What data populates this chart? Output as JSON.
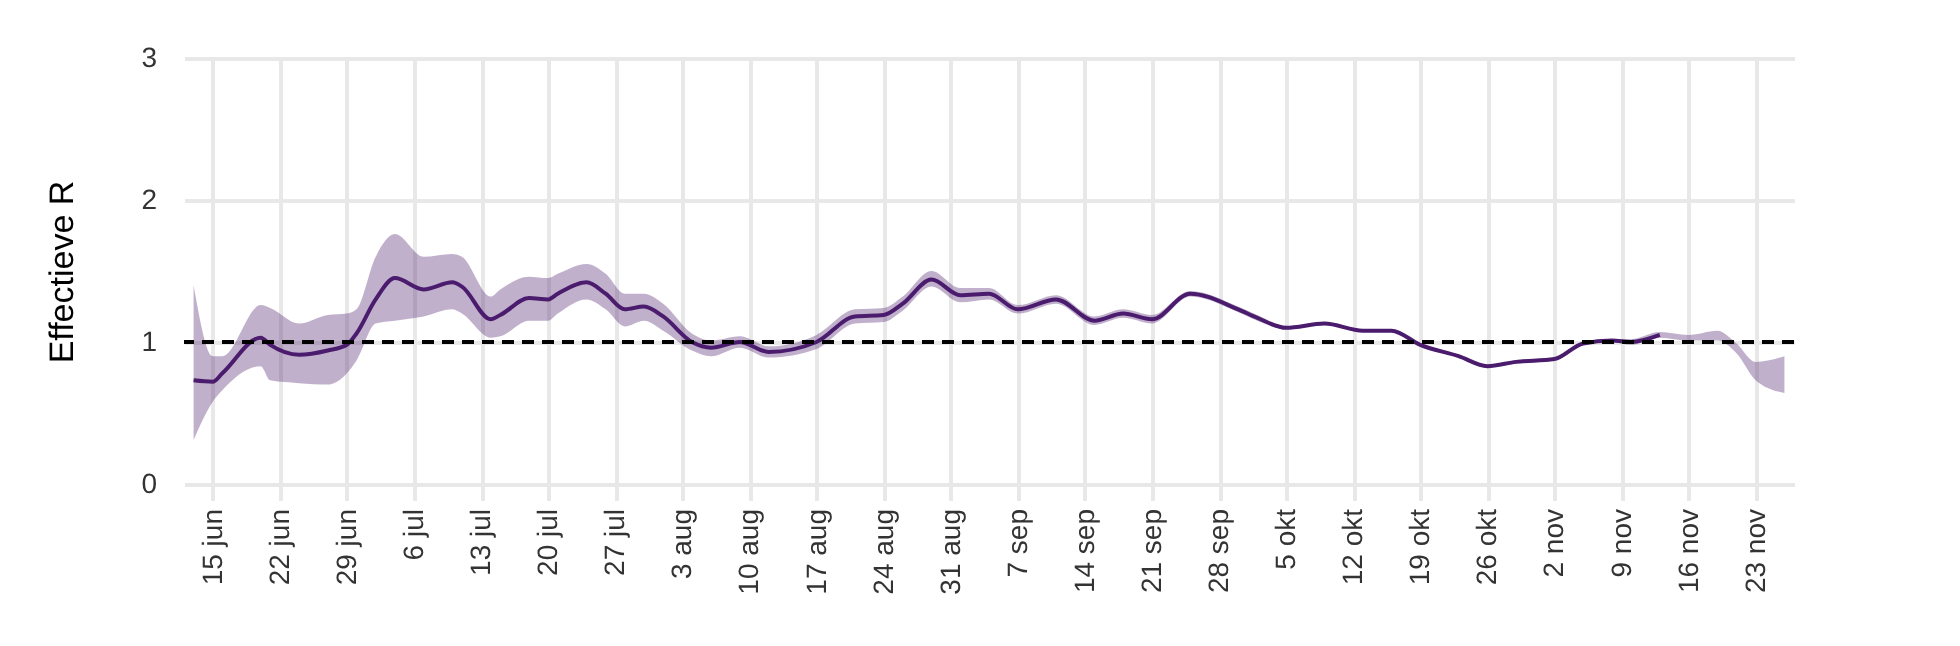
{
  "chart_data": {
    "type": "line",
    "ylabel": "Effectieve R",
    "x": [
      "--06-13",
      "--06-15",
      "--06-16",
      "--06-20",
      "--06-21",
      "--06-24",
      "--06-27",
      "--06-29",
      "--06-30",
      "--07-02",
      "--07-04",
      "--07-07",
      "--07-10",
      "--07-11",
      "--07-14",
      "--07-15",
      "--07-18",
      "--07-20",
      "--07-21",
      "--07-24",
      "--07-26",
      "--07-28",
      "--07-30",
      "--08-01",
      "--08-04",
      "--08-06",
      "--08-09",
      "--08-12",
      "--08-17",
      "--08-21",
      "--08-24",
      "--08-26",
      "--08-29",
      "--09-01",
      "--09-04",
      "--09-07",
      "--09-11",
      "--09-15",
      "--09-18",
      "--09-21",
      "--09-25",
      "--09-30",
      "--10-02",
      "--10-05",
      "--10-09",
      "--10-13",
      "--10-16",
      "--10-19",
      "--10-23",
      "--10-26",
      "--10-29",
      "--11-02",
      "--11-05",
      "--11-08",
      "--11-10",
      "--11-13",
      "--11-16",
      "--11-19",
      "--11-21",
      "--11-23",
      "--11-26"
    ],
    "series": [
      {
        "color": "#4b1c6e",
        "values": [
          0.73,
          0.72,
          0.78,
          1.03,
          0.98,
          0.91,
          0.94,
          0.98,
          1.06,
          1.3,
          1.45,
          1.37,
          1.42,
          1.39,
          1.16,
          1.19,
          1.31,
          1.3,
          1.34,
          1.42,
          1.34,
          1.23,
          1.25,
          1.18,
          1.0,
          0.96,
          1.0,
          0.93,
          1.0,
          1.18,
          1.19,
          1.27,
          1.44,
          1.33,
          1.34,
          1.23,
          1.3,
          1.15,
          1.2,
          1.16,
          1.34,
          1.23,
          1.17,
          1.1,
          1.13,
          1.08,
          1.08,
          0.98,
          0.9,
          0.83,
          0.86,
          0.88,
          0.99,
          1.01,
          1.0,
          1.05,
          null,
          null,
          null,
          null,
          null
        ],
        "lower": [
          0.31,
          0.58,
          0.66,
          0.83,
          0.73,
          0.71,
          0.7,
          0.78,
          0.87,
          1.13,
          1.15,
          1.18,
          1.23,
          1.2,
          1.03,
          1.04,
          1.15,
          1.15,
          1.2,
          1.3,
          1.23,
          1.11,
          1.15,
          1.08,
          0.94,
          0.9,
          0.96,
          0.89,
          0.95,
          1.13,
          1.14,
          1.22,
          1.39,
          1.28,
          1.3,
          1.2,
          1.27,
          1.12,
          1.17,
          1.13,
          1.32,
          1.21,
          1.15,
          1.09,
          1.12,
          1.07,
          1.07,
          0.97,
          0.89,
          0.82,
          0.85,
          0.87,
          0.98,
          1.0,
          0.98,
          1.03,
          1.01,
          1.01,
          0.92,
          0.73,
          0.64
        ],
        "upper": [
          1.4,
          0.9,
          0.9,
          1.26,
          1.24,
          1.13,
          1.19,
          1.2,
          1.23,
          1.6,
          1.76,
          1.6,
          1.62,
          1.6,
          1.32,
          1.37,
          1.46,
          1.45,
          1.48,
          1.55,
          1.48,
          1.34,
          1.34,
          1.27,
          1.06,
          1.01,
          1.04,
          0.97,
          1.05,
          1.23,
          1.24,
          1.32,
          1.5,
          1.38,
          1.38,
          1.26,
          1.33,
          1.18,
          1.23,
          1.19,
          1.36,
          1.25,
          1.19,
          1.11,
          1.14,
          1.09,
          1.09,
          0.99,
          0.91,
          0.84,
          0.87,
          0.89,
          1.0,
          1.02,
          1.02,
          1.07,
          1.05,
          1.08,
          0.99,
          0.86,
          0.9
        ]
      }
    ],
    "xlim": [
      "--06-12",
      "--11-27"
    ],
    "xticks": [
      {
        "value": "--06-15",
        "label": "15 jun"
      },
      {
        "value": "--06-22",
        "label": "22 jun"
      },
      {
        "value": "--06-29",
        "label": "29 jun"
      },
      {
        "value": "--07-06",
        "label": "6 jul"
      },
      {
        "value": "--07-13",
        "label": "13 jul"
      },
      {
        "value": "--07-20",
        "label": "20 jul"
      },
      {
        "value": "--07-27",
        "label": "27 jul"
      },
      {
        "value": "--08-03",
        "label": "3 aug"
      },
      {
        "value": "--08-10",
        "label": "10 aug"
      },
      {
        "value": "--08-17",
        "label": "17 aug"
      },
      {
        "value": "--08-24",
        "label": "24 aug"
      },
      {
        "value": "--08-31",
        "label": "31 aug"
      },
      {
        "value": "--09-07",
        "label": "7 sep"
      },
      {
        "value": "--09-14",
        "label": "14 sep"
      },
      {
        "value": "--09-21",
        "label": "21 sep"
      },
      {
        "value": "--09-28",
        "label": "28 sep"
      },
      {
        "value": "--10-05",
        "label": "5 okt"
      },
      {
        "value": "--10-12",
        "label": "12 okt"
      },
      {
        "value": "--10-19",
        "label": "19 okt"
      },
      {
        "value": "--10-26",
        "label": "26 okt"
      },
      {
        "value": "--11-02",
        "label": "2 nov"
      },
      {
        "value": "--11-09",
        "label": "9 nov"
      },
      {
        "value": "--11-16",
        "label": "16 nov"
      },
      {
        "value": "--11-23",
        "label": "23 nov"
      }
    ],
    "ylim": [
      0,
      3
    ],
    "yticks": [
      0,
      1,
      2,
      3
    ],
    "ref_lines": [
      {
        "axis": "y",
        "value": 1,
        "color": "#000000",
        "line_style": "dashed"
      }
    ],
    "grid": true
  }
}
